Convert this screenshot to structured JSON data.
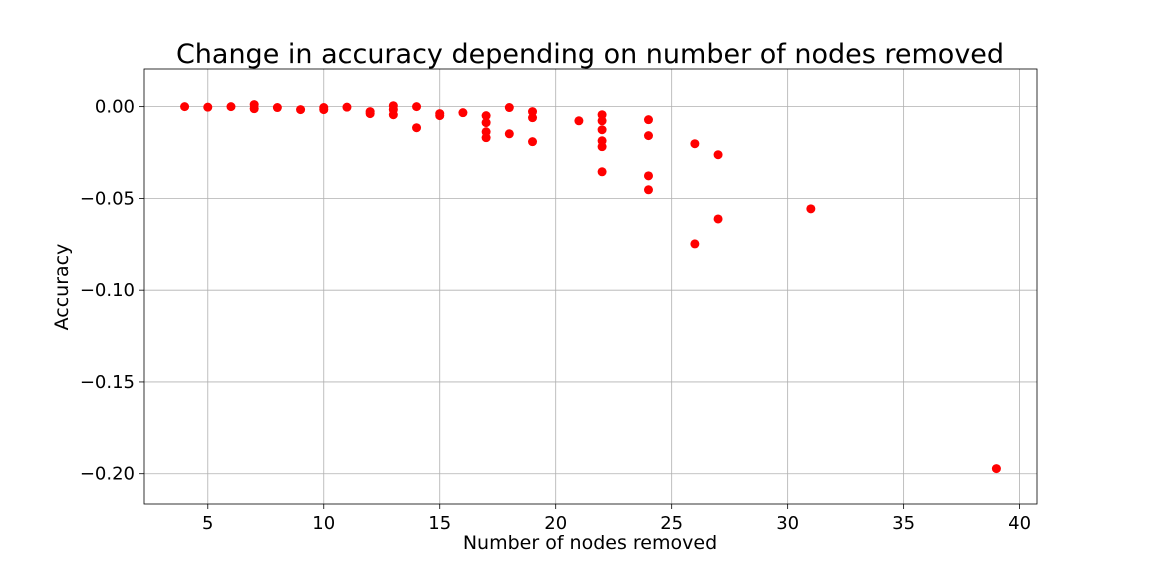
{
  "chart_data": {
    "type": "scatter",
    "title": "Change in accuracy depending on number of nodes removed",
    "xlabel": "Number of nodes removed",
    "ylabel": "Accuracy",
    "xlim": [
      2.25,
      40.75
    ],
    "ylim": [
      -0.2165,
      0.0205
    ],
    "xticks": [
      5,
      10,
      15,
      20,
      25,
      30,
      35,
      40
    ],
    "xtick_labels": [
      "5",
      "10",
      "15",
      "20",
      "25",
      "30",
      "35",
      "40"
    ],
    "yticks": [
      0.0,
      -0.05,
      -0.1,
      -0.15,
      -0.2
    ],
    "ytick_labels": [
      "0.00",
      "−0.05",
      "−0.10",
      "−0.15",
      "−0.20"
    ],
    "grid": true,
    "marker_color": "#ff0000",
    "points": [
      {
        "x": 4,
        "y": 0.0
      },
      {
        "x": 5,
        "y": -0.0003
      },
      {
        "x": 6,
        "y": 0.0
      },
      {
        "x": 7,
        "y": 0.0011
      },
      {
        "x": 7,
        "y": -0.0011
      },
      {
        "x": 8,
        "y": -0.0005
      },
      {
        "x": 9,
        "y": -0.0016
      },
      {
        "x": 10,
        "y": -0.0005
      },
      {
        "x": 10,
        "y": -0.0016
      },
      {
        "x": 11,
        "y": -0.0003
      },
      {
        "x": 12,
        "y": -0.0027
      },
      {
        "x": 12,
        "y": -0.0038
      },
      {
        "x": 13,
        "y": 0.0005
      },
      {
        "x": 13,
        "y": -0.0016
      },
      {
        "x": 13,
        "y": -0.0044
      },
      {
        "x": 14,
        "y": 0.0
      },
      {
        "x": 14,
        "y": -0.0115
      },
      {
        "x": 15,
        "y": -0.0038
      },
      {
        "x": 15,
        "y": -0.0049
      },
      {
        "x": 16,
        "y": -0.0033
      },
      {
        "x": 17,
        "y": -0.0049
      },
      {
        "x": 17,
        "y": -0.0087
      },
      {
        "x": 17,
        "y": -0.0137
      },
      {
        "x": 17,
        "y": -0.0169
      },
      {
        "x": 18,
        "y": -0.0005
      },
      {
        "x": 18,
        "y": -0.0148
      },
      {
        "x": 19,
        "y": -0.0027
      },
      {
        "x": 19,
        "y": -0.006
      },
      {
        "x": 19,
        "y": -0.0191
      },
      {
        "x": 21,
        "y": -0.0077
      },
      {
        "x": 22,
        "y": -0.0044
      },
      {
        "x": 22,
        "y": -0.0077
      },
      {
        "x": 22,
        "y": -0.0126
      },
      {
        "x": 22,
        "y": -0.0186
      },
      {
        "x": 22,
        "y": -0.0218
      },
      {
        "x": 22,
        "y": -0.0355
      },
      {
        "x": 24,
        "y": -0.0071
      },
      {
        "x": 24,
        "y": -0.0158
      },
      {
        "x": 24,
        "y": -0.0377
      },
      {
        "x": 24,
        "y": -0.0453
      },
      {
        "x": 26,
        "y": -0.0202
      },
      {
        "x": 26,
        "y": -0.0748
      },
      {
        "x": 27,
        "y": -0.0262
      },
      {
        "x": 27,
        "y": -0.0612
      },
      {
        "x": 31,
        "y": -0.0557
      },
      {
        "x": 39,
        "y": -0.1972
      }
    ]
  }
}
